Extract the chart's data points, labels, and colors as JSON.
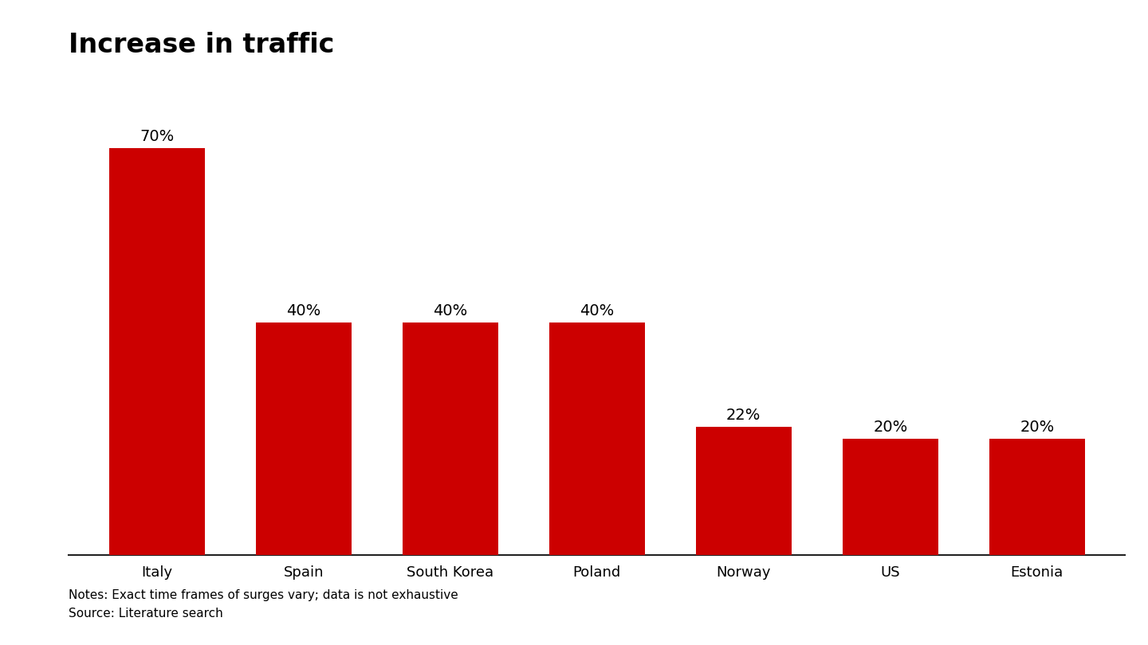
{
  "title": "Increase in traffic",
  "categories": [
    "Italy",
    "Spain",
    "South Korea",
    "Poland",
    "Norway",
    "US",
    "Estonia"
  ],
  "values": [
    70,
    40,
    40,
    40,
    22,
    20,
    20
  ],
  "bar_color": "#cc0000",
  "label_format": "{}%",
  "notes_line1": "Notes: Exact time frames of surges vary; data is not exhaustive",
  "notes_line2": "Source: Literature search",
  "title_fontsize": 24,
  "label_fontsize": 14,
  "tick_fontsize": 13,
  "notes_fontsize": 11,
  "background_color": "#ffffff",
  "ylim_max": 80,
  "bar_width": 0.65
}
